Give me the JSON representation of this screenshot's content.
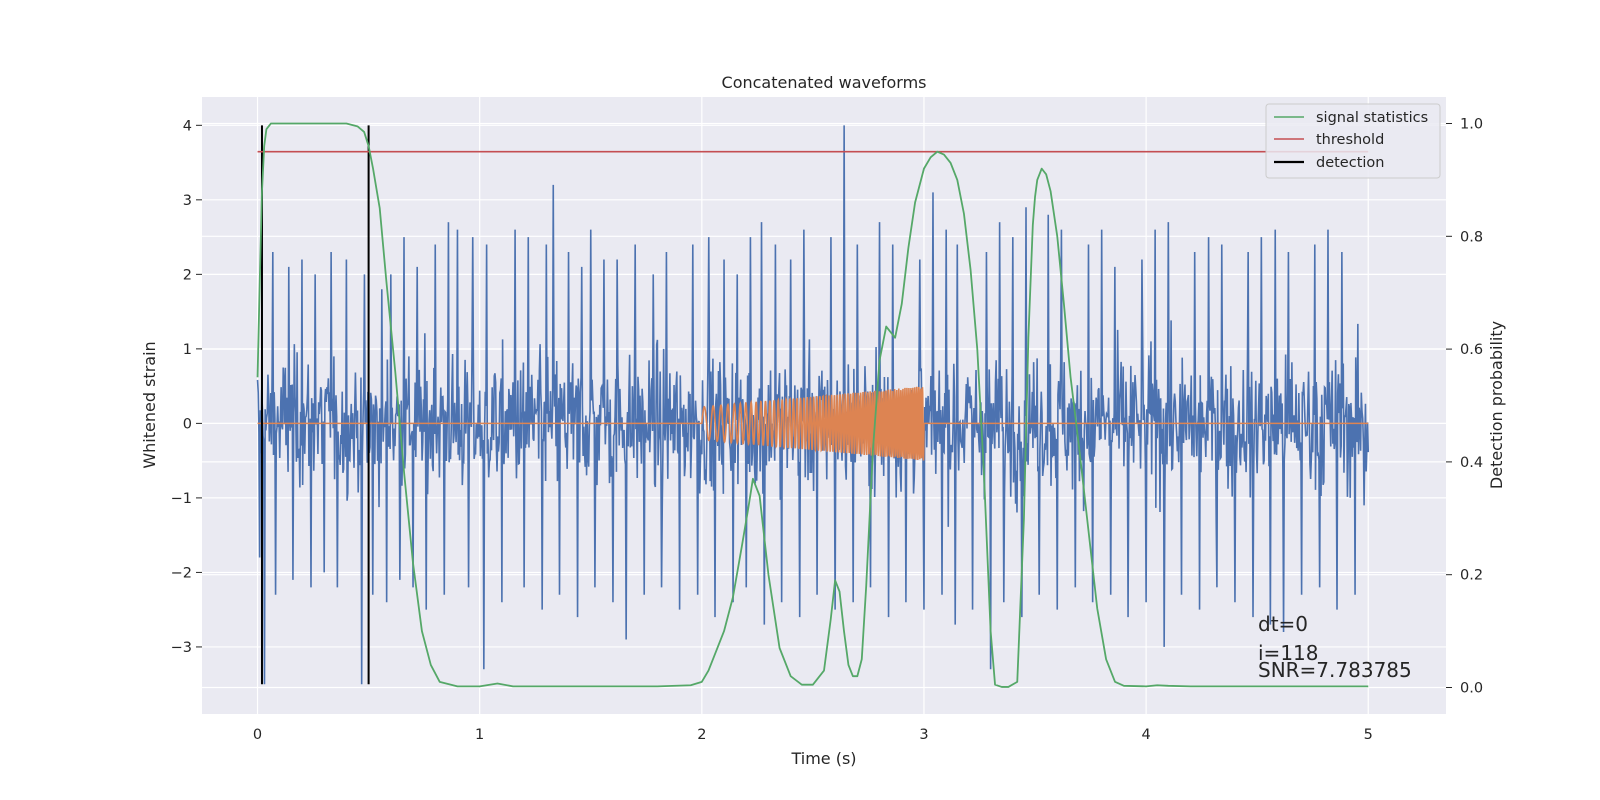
{
  "chart_data": {
    "type": "line",
    "title": "Concatenated waveforms",
    "xlabel": "Time (s)",
    "ylabel": "Whitened strain",
    "y2label": "Detection probability",
    "xlim": [
      -0.25,
      5.35
    ],
    "ylim": [
      -3.9,
      4.38
    ],
    "y2lim": [
      -0.047,
      1.047
    ],
    "xticks": [
      0,
      1,
      2,
      3,
      4,
      5
    ],
    "yticks": [
      -3,
      -2,
      -1,
      0,
      1,
      2,
      3,
      4
    ],
    "y2ticks": [
      0.0,
      0.2,
      0.4,
      0.6,
      0.8,
      1.0
    ],
    "xtick_labels": [
      "0",
      "1",
      "2",
      "3",
      "4",
      "5"
    ],
    "ytick_labels": [
      "−3",
      "−2",
      "−1",
      "0",
      "1",
      "2",
      "3",
      "4"
    ],
    "y2tick_labels": [
      "0.0",
      "0.2",
      "0.4",
      "0.6",
      "0.8",
      "1.0"
    ],
    "grid": true,
    "legend_position": "top-right",
    "colors": {
      "background": "#eaeaf2",
      "grid": "#ffffff",
      "strain": "#4c72b0",
      "template": "#dd8452",
      "signal_statistics": "#55a868",
      "threshold": "#c44e52",
      "detection": "#000000"
    },
    "series": [
      {
        "name": "signal statistics",
        "axis": "right",
        "x": [
          0.0,
          0.01,
          0.02,
          0.03,
          0.04,
          0.06,
          0.08,
          0.12,
          0.2,
          0.3,
          0.4,
          0.45,
          0.48,
          0.5,
          0.52,
          0.55,
          0.58,
          0.62,
          0.66,
          0.7,
          0.74,
          0.78,
          0.82,
          0.9,
          1.0,
          1.08,
          1.15,
          1.3,
          1.6,
          1.8,
          1.95,
          2.0,
          2.03,
          2.06,
          2.1,
          2.14,
          2.18,
          2.21,
          2.23,
          2.26,
          2.3,
          2.35,
          2.4,
          2.45,
          2.5,
          2.55,
          2.58,
          2.6,
          2.62,
          2.64,
          2.66,
          2.68,
          2.7,
          2.72,
          2.74,
          2.77,
          2.8,
          2.83,
          2.87,
          2.9,
          2.93,
          2.96,
          3.0,
          3.03,
          3.06,
          3.09,
          3.12,
          3.15,
          3.18,
          3.21,
          3.24,
          3.27,
          3.3,
          3.32,
          3.35,
          3.38,
          3.42,
          3.45,
          3.47,
          3.49,
          3.5,
          3.51,
          3.53,
          3.55,
          3.57,
          3.6,
          3.63,
          3.66,
          3.7,
          3.74,
          3.78,
          3.82,
          3.86,
          3.9,
          4.0,
          4.05,
          4.1,
          4.2,
          4.5,
          4.8,
          5.0
        ],
        "values": [
          0.55,
          0.72,
          0.88,
          0.96,
          0.99,
          1.0,
          1.0,
          1.0,
          1.0,
          1.0,
          1.0,
          0.995,
          0.985,
          0.96,
          0.92,
          0.85,
          0.72,
          0.56,
          0.38,
          0.22,
          0.1,
          0.04,
          0.01,
          0.002,
          0.002,
          0.007,
          0.002,
          0.002,
          0.002,
          0.002,
          0.004,
          0.01,
          0.03,
          0.06,
          0.1,
          0.16,
          0.25,
          0.32,
          0.37,
          0.34,
          0.2,
          0.07,
          0.02,
          0.005,
          0.005,
          0.03,
          0.12,
          0.19,
          0.17,
          0.1,
          0.04,
          0.02,
          0.02,
          0.05,
          0.18,
          0.42,
          0.58,
          0.64,
          0.62,
          0.68,
          0.78,
          0.86,
          0.92,
          0.94,
          0.95,
          0.945,
          0.93,
          0.9,
          0.84,
          0.74,
          0.6,
          0.38,
          0.1,
          0.005,
          0.001,
          0.001,
          0.01,
          0.3,
          0.62,
          0.82,
          0.87,
          0.9,
          0.92,
          0.91,
          0.88,
          0.8,
          0.68,
          0.55,
          0.42,
          0.28,
          0.14,
          0.05,
          0.01,
          0.003,
          0.002,
          0.004,
          0.003,
          0.002,
          0.002,
          0.002,
          0.002
        ]
      },
      {
        "name": "threshold",
        "axis": "right",
        "x": [
          0.0,
          5.0
        ],
        "values": [
          0.95,
          0.95
        ]
      },
      {
        "name": "detection",
        "axis": "left",
        "segments": [
          {
            "x": 0.02,
            "y": [
              -3.5,
              4.0
            ]
          },
          {
            "x": 0.5,
            "y": [
              -3.5,
              4.0
            ]
          }
        ]
      }
    ],
    "strain_peaks": [
      [
        0.03,
        3.2
      ],
      [
        0.07,
        2.3
      ],
      [
        0.14,
        2.1
      ],
      [
        0.2,
        2.2
      ],
      [
        0.26,
        2.0
      ],
      [
        0.33,
        2.3
      ],
      [
        0.4,
        2.2
      ],
      [
        0.48,
        2.0
      ],
      [
        0.56,
        1.8
      ],
      [
        0.6,
        2.0
      ],
      [
        0.66,
        2.5
      ],
      [
        0.72,
        2.1
      ],
      [
        0.8,
        2.4
      ],
      [
        0.86,
        2.7
      ],
      [
        0.9,
        2.6
      ],
      [
        0.97,
        2.5
      ],
      [
        1.03,
        2.4
      ],
      [
        1.1,
        2.1
      ],
      [
        1.16,
        2.6
      ],
      [
        1.22,
        2.5
      ],
      [
        1.3,
        2.4
      ],
      [
        1.33,
        3.2
      ],
      [
        1.4,
        2.3
      ],
      [
        1.46,
        2.1
      ],
      [
        1.5,
        2.6
      ],
      [
        1.56,
        2.2
      ],
      [
        1.62,
        2.2
      ],
      [
        1.7,
        2.4
      ],
      [
        1.78,
        2.0
      ],
      [
        1.84,
        2.3
      ],
      [
        1.9,
        2.5
      ],
      [
        1.96,
        2.4
      ],
      [
        2.03,
        2.5
      ],
      [
        2.1,
        2.2
      ],
      [
        2.16,
        2.0
      ],
      [
        2.22,
        2.5
      ],
      [
        2.27,
        2.7
      ],
      [
        2.33,
        2.4
      ],
      [
        2.4,
        2.2
      ],
      [
        2.46,
        2.6
      ],
      [
        2.52,
        2.4
      ],
      [
        2.58,
        2.5
      ],
      [
        2.64,
        4.0
      ],
      [
        2.7,
        2.4
      ],
      [
        2.76,
        2.3
      ],
      [
        2.8,
        2.7
      ],
      [
        2.86,
        2.4
      ],
      [
        2.92,
        2.6
      ],
      [
        2.98,
        2.2
      ],
      [
        3.04,
        3.1
      ],
      [
        3.1,
        2.6
      ],
      [
        3.15,
        2.4
      ],
      [
        3.22,
        2.6
      ],
      [
        3.28,
        2.3
      ],
      [
        3.34,
        2.7
      ],
      [
        3.4,
        2.5
      ],
      [
        3.46,
        2.9
      ],
      [
        3.52,
        3.0
      ],
      [
        3.56,
        2.8
      ],
      [
        3.62,
        2.6
      ],
      [
        3.68,
        2.5
      ],
      [
        3.74,
        2.4
      ],
      [
        3.8,
        2.6
      ],
      [
        3.86,
        2.1
      ],
      [
        3.92,
        2.4
      ],
      [
        3.98,
        2.2
      ],
      [
        4.04,
        2.6
      ],
      [
        4.1,
        2.7
      ],
      [
        4.16,
        2.4
      ],
      [
        4.22,
        2.3
      ],
      [
        4.28,
        2.5
      ],
      [
        4.34,
        2.4
      ],
      [
        4.4,
        2.6
      ],
      [
        4.46,
        2.3
      ],
      [
        4.52,
        2.5
      ],
      [
        4.58,
        2.6
      ],
      [
        4.64,
        2.3
      ],
      [
        4.7,
        2.5
      ],
      [
        4.76,
        2.4
      ],
      [
        4.82,
        2.6
      ],
      [
        4.88,
        2.3
      ],
      [
        4.94,
        2.6
      ],
      [
        4.98,
        1.4
      ]
    ],
    "strain_troughs": [
      [
        0.01,
        -1.8
      ],
      [
        0.03,
        -3.5
      ],
      [
        0.08,
        -2.3
      ],
      [
        0.16,
        -2.1
      ],
      [
        0.24,
        -2.2
      ],
      [
        0.3,
        -2.0
      ],
      [
        0.36,
        -2.2
      ],
      [
        0.47,
        -3.5
      ],
      [
        0.52,
        -2.3
      ],
      [
        0.58,
        -2.4
      ],
      [
        0.64,
        -2.1
      ],
      [
        0.7,
        -2.2
      ],
      [
        0.76,
        -2.5
      ],
      [
        0.84,
        -2.3
      ],
      [
        0.95,
        -2.2
      ],
      [
        1.02,
        -3.3
      ],
      [
        1.1,
        -2.4
      ],
      [
        1.2,
        -2.2
      ],
      [
        1.28,
        -2.5
      ],
      [
        1.36,
        -2.3
      ],
      [
        1.44,
        -2.6
      ],
      [
        1.52,
        -2.2
      ],
      [
        1.6,
        -2.4
      ],
      [
        1.66,
        -2.9
      ],
      [
        1.74,
        -2.3
      ],
      [
        1.82,
        -2.2
      ],
      [
        1.9,
        -2.5
      ],
      [
        1.98,
        -2.3
      ],
      [
        2.06,
        -2.6
      ],
      [
        2.14,
        -2.4
      ],
      [
        2.2,
        -2.2
      ],
      [
        2.28,
        -2.7
      ],
      [
        2.36,
        -2.4
      ],
      [
        2.44,
        -2.6
      ],
      [
        2.52,
        -2.3
      ],
      [
        2.6,
        -2.5
      ],
      [
        2.68,
        -2.4
      ],
      [
        2.76,
        -2.2
      ],
      [
        2.84,
        -2.6
      ],
      [
        2.92,
        -2.4
      ],
      [
        3.0,
        -2.5
      ],
      [
        3.08,
        -2.3
      ],
      [
        3.14,
        -2.7
      ],
      [
        3.22,
        -2.5
      ],
      [
        3.3,
        -3.3
      ],
      [
        3.36,
        -2.4
      ],
      [
        3.44,
        -2.6
      ],
      [
        3.52,
        -2.3
      ],
      [
        3.6,
        -2.5
      ],
      [
        3.68,
        -2.2
      ],
      [
        3.76,
        -2.4
      ],
      [
        3.84,
        -2.3
      ],
      [
        3.92,
        -2.6
      ],
      [
        4.0,
        -2.4
      ],
      [
        4.08,
        -3.0
      ],
      [
        4.16,
        -2.3
      ],
      [
        4.24,
        -2.5
      ],
      [
        4.32,
        -2.2
      ],
      [
        4.4,
        -2.4
      ],
      [
        4.48,
        -2.6
      ],
      [
        4.56,
        -2.7
      ],
      [
        4.62,
        -2.8
      ],
      [
        4.7,
        -2.3
      ],
      [
        4.78,
        -2.2
      ],
      [
        4.86,
        -2.5
      ],
      [
        4.94,
        -2.3
      ],
      [
        4.98,
        -1.1
      ]
    ],
    "template_chirp": {
      "t_start": 2.0,
      "t_end": 3.0,
      "amp_start": 0.22,
      "amp_end": 0.5
    },
    "annotations": [
      "dt=0",
      "i=118",
      "SNR=7.783785"
    ]
  }
}
